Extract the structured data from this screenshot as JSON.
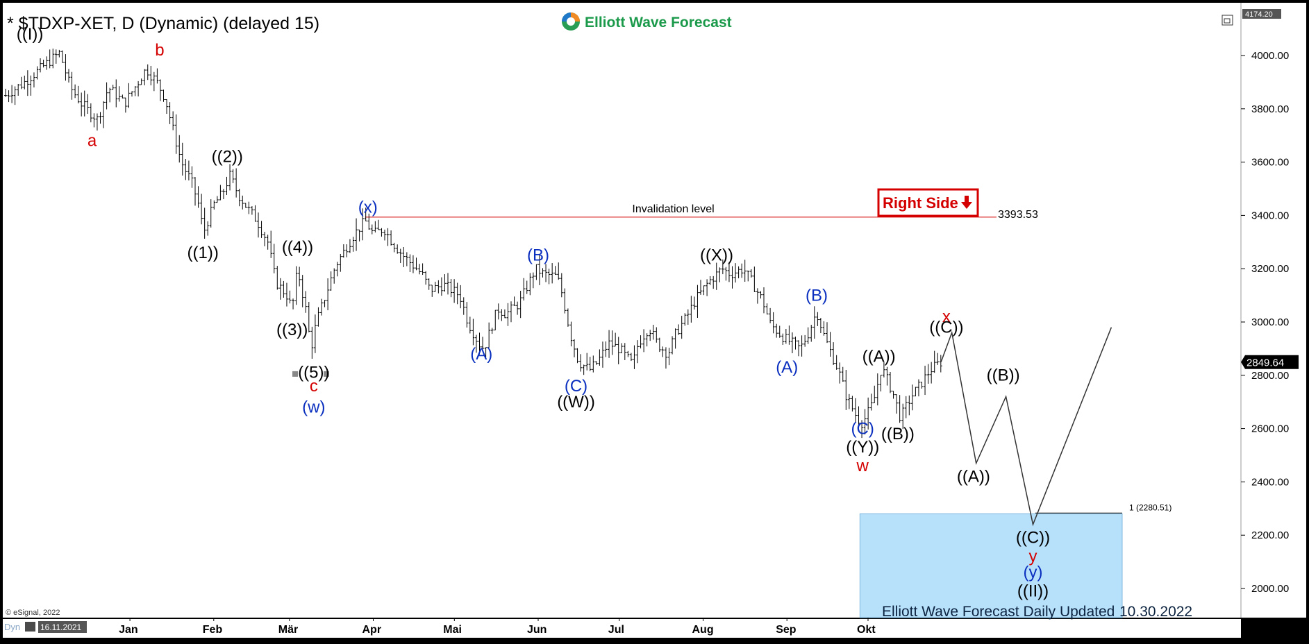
{
  "header": {
    "symbol_title": "* $TDXP-XET, D (Dynamic) (delayed 15)",
    "brand": "Elliott Wave Forecast",
    "footer_note": "Elliott Wave Forecast Daily Updated",
    "footer_date": "10.30.2022",
    "copyright": "© eSignal, 2022",
    "start_date_badge": "16.11.2021",
    "dyn_label": "Dyn"
  },
  "chart_data": {
    "type": "bar",
    "style": "ohlc",
    "y_axis": {
      "ticks": [
        2000,
        2200,
        2400,
        2600,
        2800,
        3000,
        3200,
        3400,
        3600,
        3800,
        4000
      ],
      "tick_labels": [
        "2000.00",
        "2200.00",
        "2400.00",
        "2600.00",
        "2800.00",
        "3000.00",
        "3200.00",
        "3400.00",
        "3600.00",
        "3800.00",
        "4000.00"
      ],
      "top_label": "4174.20",
      "ylim": [
        1880,
        4174.2
      ]
    },
    "x_axis": {
      "months": [
        "Jan",
        "Feb",
        "Mär",
        "Apr",
        "Mai",
        "Jun",
        "Jul",
        "Aug",
        "Sep",
        "Okt"
      ],
      "month_start_dates": [
        "2022-01-01",
        "2022-02-01",
        "2022-03-01",
        "2022-04-01",
        "2022-05-01",
        "2022-06-01",
        "2022-07-01",
        "2022-08-01",
        "2022-09-01",
        "2022-10-01"
      ]
    },
    "last_price": {
      "value": 2849.64,
      "label": "2849.64"
    },
    "invalidation": {
      "label": "Invalidation level",
      "value": 3393.53,
      "value_label": "3393.53",
      "from_date": "2022-03-29"
    },
    "target_zone": {
      "label": "1 (2280.51)",
      "top": 2280.51,
      "from_date": "2022-09-28",
      "to_date": "2023-01-03"
    },
    "right_side_badge": {
      "label": "Right Side",
      "arrow": "down"
    },
    "colors": {
      "price": "#000000",
      "wave_red": "#d40000",
      "wave_blue": "#0a2fbf",
      "wave_black": "#000000",
      "zone": "#b7e1fb",
      "line_red": "#d40000"
    },
    "price_path": [
      {
        "date": "2021-11-16",
        "price": 3850
      },
      {
        "date": "2021-11-23",
        "price": 3900
      },
      {
        "date": "2021-11-30",
        "price": 3960
      },
      {
        "date": "2021-12-06",
        "price": 4010
      },
      {
        "date": "2021-12-10",
        "price": 3880
      },
      {
        "date": "2021-12-14",
        "price": 3820
      },
      {
        "date": "2021-12-20",
        "price": 3760
      },
      {
        "date": "2021-12-24",
        "price": 3880
      },
      {
        "date": "2021-12-30",
        "price": 3820
      },
      {
        "date": "2022-01-04",
        "price": 3900
      },
      {
        "date": "2022-01-07",
        "price": 3950
      },
      {
        "date": "2022-01-11",
        "price": 3900
      },
      {
        "date": "2022-01-14",
        "price": 3840
      },
      {
        "date": "2022-01-18",
        "price": 3680
      },
      {
        "date": "2022-01-20",
        "price": 3600
      },
      {
        "date": "2022-01-24",
        "price": 3520
      },
      {
        "date": "2022-01-27",
        "price": 3420
      },
      {
        "date": "2022-01-28",
        "price": 3330
      },
      {
        "date": "2022-02-01",
        "price": 3440
      },
      {
        "date": "2022-02-04",
        "price": 3480
      },
      {
        "date": "2022-02-07",
        "price": 3550
      },
      {
        "date": "2022-02-10",
        "price": 3480
      },
      {
        "date": "2022-02-14",
        "price": 3420
      },
      {
        "date": "2022-02-17",
        "price": 3380
      },
      {
        "date": "2022-02-21",
        "price": 3300
      },
      {
        "date": "2022-02-24",
        "price": 3150
      },
      {
        "date": "2022-02-28",
        "price": 3100
      },
      {
        "date": "2022-03-02",
        "price": 3050
      },
      {
        "date": "2022-03-04",
        "price": 3200
      },
      {
        "date": "2022-03-07",
        "price": 3050
      },
      {
        "date": "2022-03-09",
        "price": 2900
      },
      {
        "date": "2022-03-11",
        "price": 3000
      },
      {
        "date": "2022-03-15",
        "price": 3120
      },
      {
        "date": "2022-03-18",
        "price": 3210
      },
      {
        "date": "2022-03-22",
        "price": 3280
      },
      {
        "date": "2022-03-25",
        "price": 3330
      },
      {
        "date": "2022-03-29",
        "price": 3380
      },
      {
        "date": "2022-04-01",
        "price": 3330
      },
      {
        "date": "2022-04-05",
        "price": 3350
      },
      {
        "date": "2022-04-08",
        "price": 3300
      },
      {
        "date": "2022-04-12",
        "price": 3250
      },
      {
        "date": "2022-04-19",
        "price": 3180
      },
      {
        "date": "2022-04-22",
        "price": 3120
      },
      {
        "date": "2022-04-27",
        "price": 3140
      },
      {
        "date": "2022-05-03",
        "price": 3100
      },
      {
        "date": "2022-05-06",
        "price": 3000
      },
      {
        "date": "2022-05-10",
        "price": 2920
      },
      {
        "date": "2022-05-12",
        "price": 2900
      },
      {
        "date": "2022-05-17",
        "price": 3050
      },
      {
        "date": "2022-05-20",
        "price": 3030
      },
      {
        "date": "2022-05-25",
        "price": 3070
      },
      {
        "date": "2022-05-31",
        "price": 3200
      },
      {
        "date": "2022-06-03",
        "price": 3180
      },
      {
        "date": "2022-06-08",
        "price": 3170
      },
      {
        "date": "2022-06-10",
        "price": 3100
      },
      {
        "date": "2022-06-13",
        "price": 2950
      },
      {
        "date": "2022-06-16",
        "price": 2850
      },
      {
        "date": "2022-06-20",
        "price": 2820
      },
      {
        "date": "2022-06-23",
        "price": 2850
      },
      {
        "date": "2022-06-27",
        "price": 2920
      },
      {
        "date": "2022-07-01",
        "price": 2900
      },
      {
        "date": "2022-07-06",
        "price": 2840
      },
      {
        "date": "2022-07-08",
        "price": 2920
      },
      {
        "date": "2022-07-12",
        "price": 2980
      },
      {
        "date": "2022-07-15",
        "price": 2920
      },
      {
        "date": "2022-07-19",
        "price": 2880
      },
      {
        "date": "2022-07-22",
        "price": 2960
      },
      {
        "date": "2022-07-26",
        "price": 3020
      },
      {
        "date": "2022-07-29",
        "price": 3080
      },
      {
        "date": "2022-08-03",
        "price": 3150
      },
      {
        "date": "2022-08-08",
        "price": 3200
      },
      {
        "date": "2022-08-11",
        "price": 3180
      },
      {
        "date": "2022-08-16",
        "price": 3200
      },
      {
        "date": "2022-08-19",
        "price": 3150
      },
      {
        "date": "2022-08-23",
        "price": 3080
      },
      {
        "date": "2022-08-26",
        "price": 2990
      },
      {
        "date": "2022-08-31",
        "price": 2940
      },
      {
        "date": "2022-09-06",
        "price": 2900
      },
      {
        "date": "2022-09-09",
        "price": 2960
      },
      {
        "date": "2022-09-12",
        "price": 3040
      },
      {
        "date": "2022-09-15",
        "price": 2940
      },
      {
        "date": "2022-09-20",
        "price": 2820
      },
      {
        "date": "2022-09-23",
        "price": 2720
      },
      {
        "date": "2022-09-27",
        "price": 2640
      },
      {
        "date": "2022-09-29",
        "price": 2620
      },
      {
        "date": "2022-10-03",
        "price": 2700
      },
      {
        "date": "2022-10-06",
        "price": 2830
      },
      {
        "date": "2022-10-10",
        "price": 2740
      },
      {
        "date": "2022-10-13",
        "price": 2640
      },
      {
        "date": "2022-10-17",
        "price": 2720
      },
      {
        "date": "2022-10-20",
        "price": 2760
      },
      {
        "date": "2022-10-24",
        "price": 2820
      },
      {
        "date": "2022-10-28",
        "price": 2850
      }
    ],
    "projection_path": [
      {
        "date": "2022-10-28",
        "price": 2850
      },
      {
        "date": "2022-11-01",
        "price": 2960
      },
      {
        "date": "2022-11-10",
        "price": 2470
      },
      {
        "date": "2022-11-21",
        "price": 2720
      },
      {
        "date": "2022-12-01",
        "price": 2240
      },
      {
        "date": "2022-12-30",
        "price": 2980
      }
    ],
    "wave_labels": [
      {
        "text": "((I))",
        "date": "2021-11-25",
        "price": 4060,
        "color": "black"
      },
      {
        "text": "a",
        "date": "2021-12-18",
        "price": 3660,
        "color": "red"
      },
      {
        "text": "b",
        "date": "2022-01-12",
        "price": 4000,
        "color": "red"
      },
      {
        "text": "((2))",
        "date": "2022-02-06",
        "price": 3600,
        "color": "black"
      },
      {
        "text": "((1))",
        "date": "2022-01-28",
        "price": 3240,
        "color": "black"
      },
      {
        "text": "((4))",
        "date": "2022-03-04",
        "price": 3260,
        "color": "black"
      },
      {
        "text": "((3))",
        "date": "2022-03-02",
        "price": 2950,
        "color": "black"
      },
      {
        "text": "((5))",
        "date": "2022-03-10",
        "price": 2790,
        "color": "black"
      },
      {
        "text": "c",
        "date": "2022-03-10",
        "price": 2740,
        "color": "red"
      },
      {
        "text": "(w)",
        "date": "2022-03-10",
        "price": 2660,
        "color": "blue"
      },
      {
        "text": "(x)",
        "date": "2022-03-30",
        "price": 3410,
        "color": "blue"
      },
      {
        "text": "(B)",
        "date": "2022-06-01",
        "price": 3230,
        "color": "blue"
      },
      {
        "text": "(A)",
        "date": "2022-05-11",
        "price": 2860,
        "color": "blue"
      },
      {
        "text": "(C)",
        "date": "2022-06-15",
        "price": 2740,
        "color": "blue"
      },
      {
        "text": "((W))",
        "date": "2022-06-15",
        "price": 2680,
        "color": "black"
      },
      {
        "text": "((X))",
        "date": "2022-08-06",
        "price": 3230,
        "color": "black"
      },
      {
        "text": "(B)",
        "date": "2022-09-12",
        "price": 3080,
        "color": "blue"
      },
      {
        "text": "(A)",
        "date": "2022-09-01",
        "price": 2810,
        "color": "blue"
      },
      {
        "text": "((A))",
        "date": "2022-10-05",
        "price": 2850,
        "color": "black"
      },
      {
        "text": "(C)",
        "date": "2022-09-29",
        "price": 2580,
        "color": "blue"
      },
      {
        "text": "((B))",
        "date": "2022-10-12",
        "price": 2560,
        "color": "black"
      },
      {
        "text": "((Y))",
        "date": "2022-09-29",
        "price": 2510,
        "color": "black"
      },
      {
        "text": "w",
        "date": "2022-09-29",
        "price": 2440,
        "color": "red"
      },
      {
        "text": "x",
        "date": "2022-10-30",
        "price": 3000,
        "color": "red"
      },
      {
        "text": "((C))",
        "date": "2022-10-30",
        "price": 2960,
        "color": "black"
      },
      {
        "text": "((B))",
        "date": "2022-11-20",
        "price": 2780,
        "color": "black"
      },
      {
        "text": "((A))",
        "date": "2022-11-09",
        "price": 2400,
        "color": "black"
      },
      {
        "text": "((C))",
        "date": "2022-12-01",
        "price": 2170,
        "color": "black"
      },
      {
        "text": "y",
        "date": "2022-12-01",
        "price": 2100,
        "color": "red"
      },
      {
        "text": "(y)",
        "date": "2022-12-01",
        "price": 2040,
        "color": "blue"
      },
      {
        "text": "((II))",
        "date": "2022-12-01",
        "price": 1970,
        "color": "black"
      }
    ]
  }
}
